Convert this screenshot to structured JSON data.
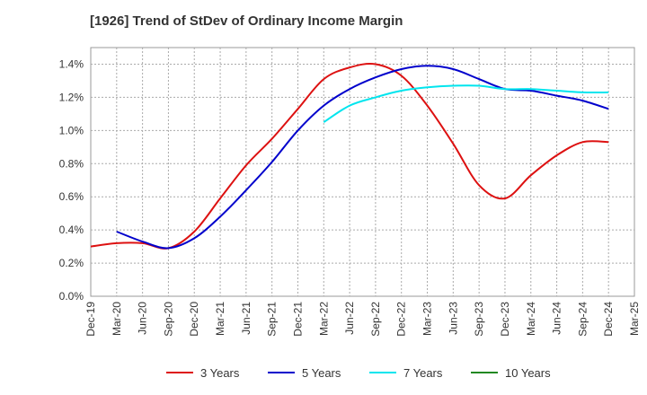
{
  "chart_data": {
    "type": "line",
    "title": "[1926]  Trend of StDev of Ordinary Income Margin",
    "xlabel": "",
    "ylabel": "",
    "ylim": [
      0,
      1.5
    ],
    "y_ticks": [
      "0.0%",
      "0.2%",
      "0.4%",
      "0.6%",
      "0.8%",
      "1.0%",
      "1.2%",
      "1.4%"
    ],
    "y_tick_values": [
      0,
      0.2,
      0.4,
      0.6,
      0.8,
      1.0,
      1.2,
      1.4
    ],
    "x_ticks": [
      "Dec-19",
      "Mar-20",
      "Jun-20",
      "Sep-20",
      "Dec-20",
      "Mar-21",
      "Jun-21",
      "Sep-21",
      "Dec-21",
      "Mar-22",
      "Jun-22",
      "Sep-22",
      "Dec-22",
      "Mar-23",
      "Jun-23",
      "Sep-23",
      "Dec-23",
      "Mar-24",
      "Jun-24",
      "Sep-24",
      "Dec-24",
      "Mar-25"
    ],
    "grid": true,
    "legend_position": "bottom",
    "series": [
      {
        "name": "3 Years",
        "color": "#dd1111",
        "points": [
          [
            "Dec-19",
            0.3
          ],
          [
            "Mar-20",
            0.32
          ],
          [
            "Jun-20",
            0.32
          ],
          [
            "Sep-20",
            0.29
          ],
          [
            "Dec-20",
            0.39
          ],
          [
            "Mar-21",
            0.59
          ],
          [
            "Jun-21",
            0.79
          ],
          [
            "Sep-21",
            0.95
          ],
          [
            "Dec-21",
            1.13
          ],
          [
            "Mar-22",
            1.31
          ],
          [
            "Jun-22",
            1.38
          ],
          [
            "Sep-22",
            1.4
          ],
          [
            "Dec-22",
            1.33
          ],
          [
            "Mar-23",
            1.15
          ],
          [
            "Jun-23",
            0.92
          ],
          [
            "Sep-23",
            0.67
          ],
          [
            "Dec-23",
            0.59
          ],
          [
            "Mar-24",
            0.73
          ],
          [
            "Jun-24",
            0.85
          ],
          [
            "Sep-24",
            0.93
          ],
          [
            "Dec-24",
            0.93
          ]
        ]
      },
      {
        "name": "5 Years",
        "color": "#0000cc",
        "points": [
          [
            "Mar-20",
            0.39
          ],
          [
            "Jun-20",
            0.33
          ],
          [
            "Sep-20",
            0.29
          ],
          [
            "Dec-20",
            0.35
          ],
          [
            "Mar-21",
            0.48
          ],
          [
            "Jun-21",
            0.64
          ],
          [
            "Sep-21",
            0.81
          ],
          [
            "Dec-21",
            1.0
          ],
          [
            "Mar-22",
            1.15
          ],
          [
            "Jun-22",
            1.25
          ],
          [
            "Sep-22",
            1.32
          ],
          [
            "Dec-22",
            1.37
          ],
          [
            "Mar-23",
            1.39
          ],
          [
            "Jun-23",
            1.37
          ],
          [
            "Sep-23",
            1.31
          ],
          [
            "Dec-23",
            1.25
          ],
          [
            "Mar-24",
            1.24
          ],
          [
            "Jun-24",
            1.21
          ],
          [
            "Sep-24",
            1.18
          ],
          [
            "Dec-24",
            1.13
          ]
        ]
      },
      {
        "name": "7 Years",
        "color": "#00e5ee",
        "points": [
          [
            "Mar-22",
            1.05
          ],
          [
            "Jun-22",
            1.15
          ],
          [
            "Sep-22",
            1.2
          ],
          [
            "Dec-22",
            1.24
          ],
          [
            "Mar-23",
            1.26
          ],
          [
            "Jun-23",
            1.27
          ],
          [
            "Sep-23",
            1.27
          ],
          [
            "Dec-23",
            1.25
          ],
          [
            "Mar-24",
            1.25
          ],
          [
            "Jun-24",
            1.24
          ],
          [
            "Sep-24",
            1.23
          ],
          [
            "Dec-24",
            1.23
          ]
        ]
      },
      {
        "name": "10 Years",
        "color": "#228822",
        "points": []
      }
    ]
  }
}
